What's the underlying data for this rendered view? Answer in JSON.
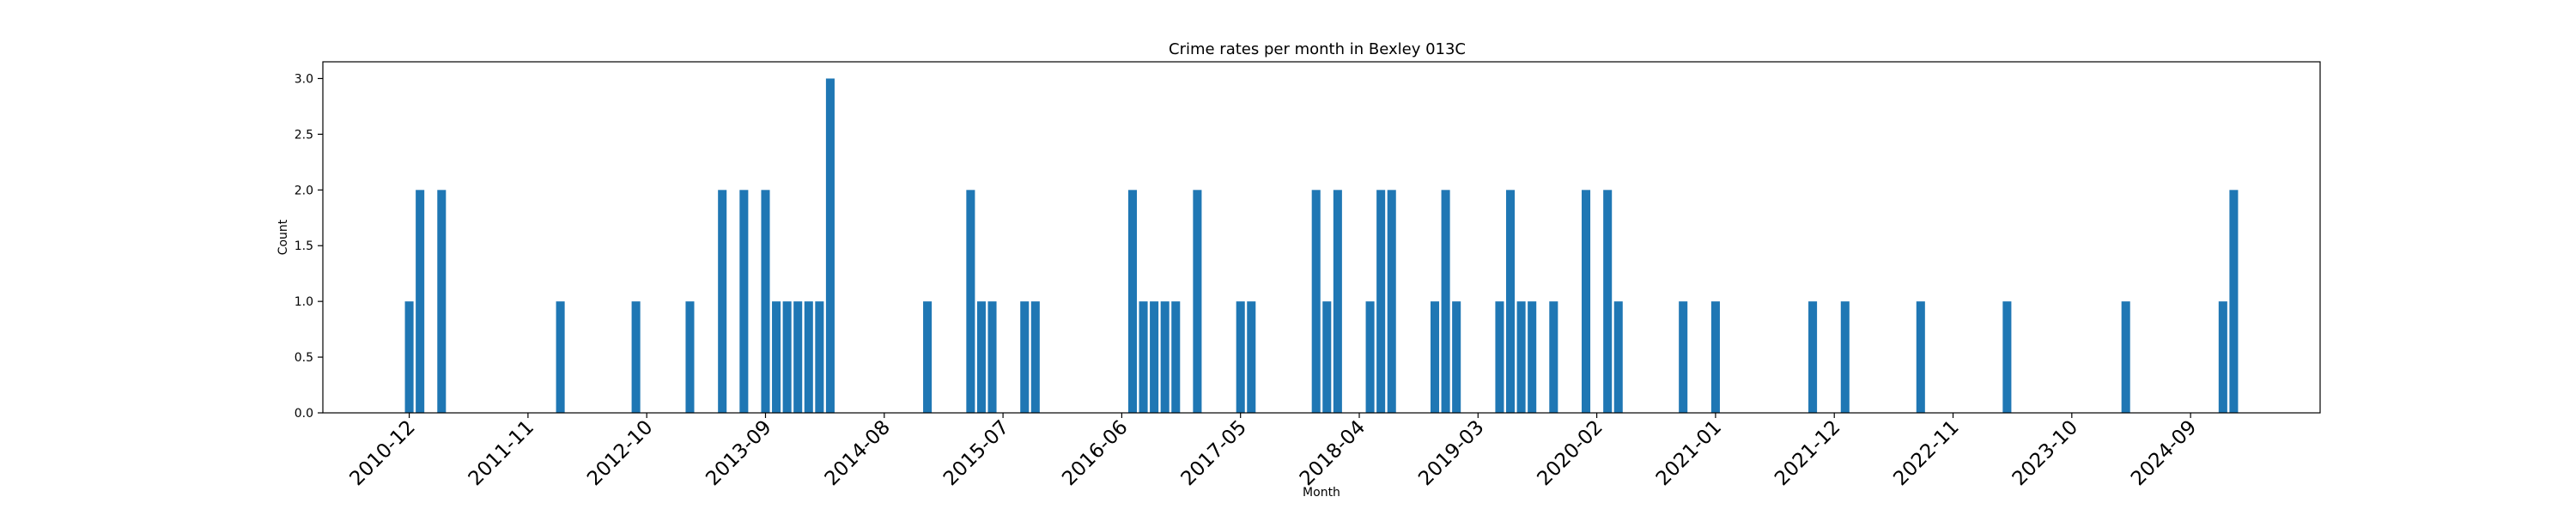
{
  "chart_data": {
    "type": "bar",
    "title": "Crime rates per month in Bexley 013C",
    "xlabel": "Month",
    "ylabel": "Count",
    "ylim": [
      0,
      3.15
    ],
    "yticks": [
      "0.0",
      "0.5",
      "1.0",
      "1.5",
      "2.0",
      "2.5",
      "3.0"
    ],
    "xlim": [
      "2010-04",
      "2025-09"
    ],
    "xticks": [
      "2010-12",
      "2011-11",
      "2012-10",
      "2013-09",
      "2014-08",
      "2015-07",
      "2016-06",
      "2017-05",
      "2018-04",
      "2019-03",
      "2020-02",
      "2021-01",
      "2021-12",
      "2022-11",
      "2023-10",
      "2024-09"
    ],
    "bar_color": "#1f77b4",
    "grid": false,
    "series": [
      {
        "x": [
          "2010-12",
          "2011-01",
          "2011-03",
          "2012-02",
          "2012-09",
          "2013-02",
          "2013-05",
          "2013-07",
          "2013-09",
          "2013-10",
          "2013-11",
          "2013-12",
          "2014-01",
          "2014-02",
          "2014-03",
          "2014-12",
          "2015-04",
          "2015-05",
          "2015-06",
          "2015-09",
          "2015-10",
          "2016-07",
          "2016-08",
          "2016-09",
          "2016-10",
          "2016-11",
          "2017-01",
          "2017-05",
          "2017-06",
          "2017-12",
          "2018-01",
          "2018-02",
          "2018-05",
          "2018-06",
          "2018-07",
          "2018-11",
          "2018-12",
          "2019-01",
          "2019-05",
          "2019-06",
          "2019-07",
          "2019-08",
          "2019-10",
          "2020-01",
          "2020-03",
          "2020-04",
          "2020-10",
          "2021-01",
          "2021-10",
          "2022-01",
          "2022-08",
          "2023-04",
          "2024-03",
          "2024-12",
          "2025-01"
        ],
        "values": [
          1,
          2,
          2,
          1,
          1,
          1,
          2,
          2,
          2,
          1,
          1,
          1,
          1,
          1,
          3,
          1,
          2,
          1,
          1,
          1,
          1,
          2,
          1,
          1,
          1,
          1,
          2,
          1,
          1,
          2,
          1,
          2,
          1,
          2,
          2,
          1,
          2,
          1,
          1,
          2,
          1,
          1,
          1,
          2,
          2,
          1,
          1,
          1,
          1,
          1,
          1,
          1,
          1,
          1,
          2
        ]
      }
    ]
  }
}
